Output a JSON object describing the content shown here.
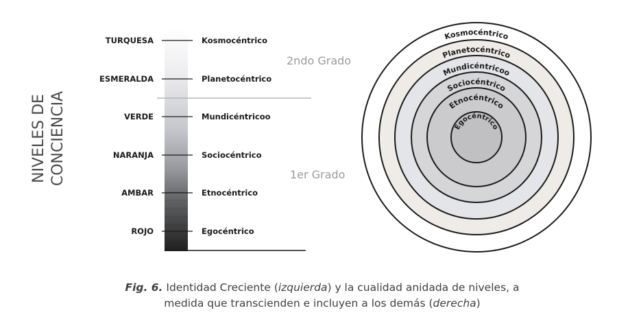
{
  "vertical_title": {
    "line1": "NIVELES DE",
    "line2": "CONCIENCIA"
  },
  "levels": [
    {
      "color_name": "TURQUESA",
      "stage": "Kosmocéntrico"
    },
    {
      "color_name": "ESMERALDA",
      "stage": "Planetocéntrico"
    },
    {
      "color_name": "VERDE",
      "stage": "Mundicéntricoo"
    },
    {
      "color_name": "NARANJA",
      "stage": "Sociocéntrico"
    },
    {
      "color_name": "AMBAR",
      "stage": "Etnocéntrico"
    },
    {
      "color_name": "ROJO",
      "stage": "Egocéntrico"
    }
  ],
  "grades": {
    "second": "2ndo Grado",
    "first": "1er Grado"
  },
  "rings": [
    {
      "label": "Kosmocéntrico",
      "fill": "#ffffff"
    },
    {
      "label": "Planetocéntrico",
      "fill": "#efebe6"
    },
    {
      "label": "Mundicéntricoo",
      "fill": "#e4e5e8"
    },
    {
      "label": "Sociocéntrico",
      "fill": "#d6d6d8"
    },
    {
      "label": "Etnocéntrico",
      "fill": "#cbcbcd"
    },
    {
      "label": "Egocéntrico",
      "fill": "#c0c0c2"
    }
  ],
  "caption": {
    "fig": "Fig. 6.",
    "text1": " Identidad Creciente (",
    "italic1": "izquierda",
    "text2": ") y la cualidad anidada de niveles, a",
    "text3": "medida que transcienden e incluyen a los demás (",
    "italic2": "derecha",
    "text4": ")"
  },
  "colors": {
    "line": "#1a1a1a",
    "divider": "#b5b5b5",
    "grade_text": "#9a9a9a",
    "title_text": "#4a4a4a"
  }
}
